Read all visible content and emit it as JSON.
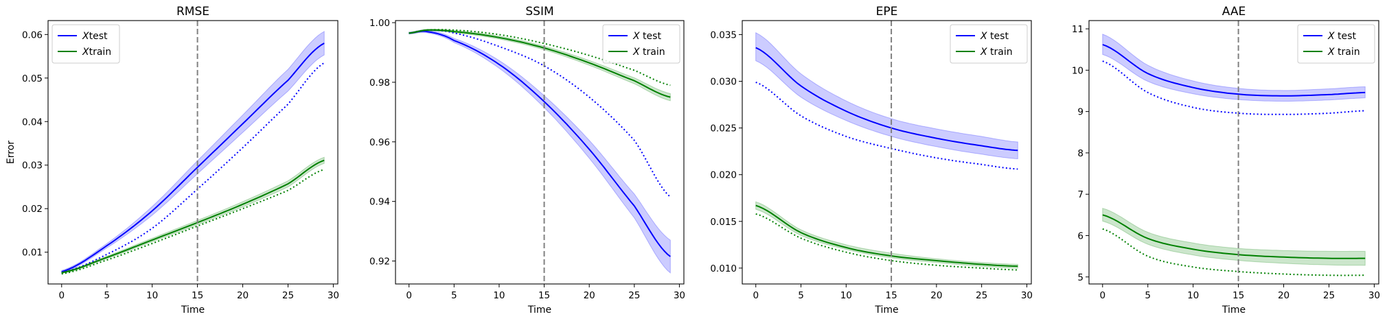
{
  "chart_data": [
    {
      "type": "line",
      "title": "RMSE",
      "xlabel": "Time",
      "ylabel": "Error",
      "xlim": [
        -1.5,
        30.5
      ],
      "ylim": [
        0.0027,
        0.0632
      ],
      "xticks": [
        0,
        5,
        10,
        15,
        20,
        25,
        30
      ],
      "yticks": [
        0.01,
        0.02,
        0.03,
        0.04,
        0.05,
        0.06
      ],
      "ytick_labels": [
        "0.01",
        "0.02",
        "0.03",
        "0.04",
        "0.05",
        "0.06"
      ],
      "vline_x": 15,
      "legend_placement": "top-left",
      "series": [
        {
          "name": "Xtest",
          "name_prefix": "X",
          "name_rest": "test",
          "color": "#0000ff",
          "x": [
            0,
            5,
            10,
            15,
            20,
            25,
            29
          ],
          "mean": [
            0.0055,
            0.0115,
            0.0195,
            0.0295,
            0.0395,
            0.0495,
            0.058
          ],
          "lower": [
            0.0052,
            0.011,
            0.0185,
            0.028,
            0.0375,
            0.047,
            0.0553
          ],
          "upper": [
            0.0058,
            0.012,
            0.0205,
            0.031,
            0.0415,
            0.052,
            0.0607
          ],
          "dotted": [
            0.0053,
            0.0095,
            0.0155,
            0.0245,
            0.034,
            0.044,
            0.0535
          ]
        },
        {
          "name": "Xtrain",
          "name_prefix": "X",
          "name_rest": "train",
          "color": "#008000",
          "x": [
            0,
            5,
            10,
            15,
            20,
            25,
            29
          ],
          "mean": [
            0.0053,
            0.0088,
            0.0128,
            0.0168,
            0.021,
            0.0257,
            0.0311
          ],
          "lower": [
            0.0051,
            0.0085,
            0.0124,
            0.0163,
            0.0204,
            0.025,
            0.0304
          ],
          "upper": [
            0.0055,
            0.0091,
            0.0132,
            0.0173,
            0.0216,
            0.0264,
            0.0318
          ],
          "dotted": [
            0.005,
            0.0082,
            0.012,
            0.016,
            0.02,
            0.0242,
            0.029
          ]
        }
      ]
    },
    {
      "type": "line",
      "title": "SSIM",
      "xlabel": "Time",
      "ylabel": "",
      "xlim": [
        -1.5,
        30.5
      ],
      "ylim": [
        0.9123,
        1.0007
      ],
      "xticks": [
        0,
        5,
        10,
        15,
        20,
        25,
        30
      ],
      "yticks": [
        0.92,
        0.94,
        0.96,
        0.98,
        1.0
      ],
      "ytick_labels": [
        "0.92",
        "0.94",
        "0.96",
        "0.98",
        "1.00"
      ],
      "vline_x": 15,
      "legend_placement": "top-right",
      "series": [
        {
          "name": "X test",
          "name_prefix": "X",
          "name_rest": " test",
          "color": "#0000ff",
          "x": [
            0,
            2,
            5,
            10,
            15,
            20,
            25,
            29
          ],
          "mean": [
            0.9965,
            0.997,
            0.994,
            0.986,
            0.9735,
            0.9575,
            0.9385,
            0.9215
          ],
          "lower": [
            0.9962,
            0.9966,
            0.9933,
            0.9847,
            0.9715,
            0.9545,
            0.9345,
            0.916
          ],
          "upper": [
            0.9968,
            0.9974,
            0.9947,
            0.9873,
            0.9755,
            0.9605,
            0.9425,
            0.927
          ],
          "dotted": [
            0.9965,
            0.9975,
            0.9965,
            0.992,
            0.9855,
            0.975,
            0.9605,
            0.9415
          ]
        },
        {
          "name": "X train",
          "name_prefix": "X",
          "name_rest": " train",
          "color": "#008000",
          "x": [
            0,
            2,
            5,
            10,
            15,
            20,
            25,
            29
          ],
          "mean": [
            0.9965,
            0.9975,
            0.997,
            0.995,
            0.9915,
            0.9865,
            0.9805,
            0.975
          ],
          "lower": [
            0.9962,
            0.9972,
            0.9966,
            0.9945,
            0.9909,
            0.9857,
            0.9795,
            0.9738
          ],
          "upper": [
            0.9968,
            0.9978,
            0.9974,
            0.9955,
            0.9921,
            0.9873,
            0.9815,
            0.9762
          ],
          "dotted": [
            0.9965,
            0.9975,
            0.9975,
            0.996,
            0.993,
            0.989,
            0.984,
            0.979
          ]
        }
      ]
    },
    {
      "type": "line",
      "title": "EPE",
      "xlabel": "Time",
      "ylabel": "",
      "xlim": [
        -1.5,
        30.5
      ],
      "ylim": [
        0.0083,
        0.0365
      ],
      "xticks": [
        0,
        5,
        10,
        15,
        20,
        25,
        30
      ],
      "yticks": [
        0.01,
        0.015,
        0.02,
        0.025,
        0.03,
        0.035
      ],
      "ytick_labels": [
        "0.010",
        "0.015",
        "0.020",
        "0.025",
        "0.030",
        "0.035"
      ],
      "vline_x": 15,
      "legend_placement": "top-right",
      "series": [
        {
          "name": "X test",
          "name_prefix": "X",
          "name_rest": " test",
          "color": "#0000ff",
          "x": [
            0,
            5,
            10,
            15,
            20,
            25,
            29
          ],
          "mean": [
            0.0336,
            0.0295,
            0.0268,
            0.025,
            0.0239,
            0.0231,
            0.0226
          ],
          "lower": [
            0.0322,
            0.0283,
            0.0258,
            0.0241,
            0.023,
            0.0222,
            0.0217
          ],
          "upper": [
            0.0352,
            0.0308,
            0.0279,
            0.026,
            0.0249,
            0.0241,
            0.0235
          ],
          "dotted": [
            0.0299,
            0.0263,
            0.0241,
            0.0228,
            0.0218,
            0.0211,
            0.0206
          ]
        },
        {
          "name": "X train",
          "name_prefix": "X",
          "name_rest": " train",
          "color": "#008000",
          "x": [
            0,
            5,
            10,
            15,
            20,
            25,
            29
          ],
          "mean": [
            0.0167,
            0.0138,
            0.0122,
            0.0113,
            0.0108,
            0.0104,
            0.0102
          ],
          "lower": [
            0.0163,
            0.0135,
            0.012,
            0.0111,
            0.0106,
            0.0102,
            0.01
          ],
          "upper": [
            0.0171,
            0.0141,
            0.0125,
            0.0116,
            0.011,
            0.0106,
            0.0104
          ],
          "dotted": [
            0.0158,
            0.0132,
            0.0117,
            0.0108,
            0.0103,
            0.01,
            0.0098
          ]
        }
      ]
    },
    {
      "type": "line",
      "title": "AAE",
      "xlabel": "Time",
      "ylabel": "",
      "xlim": [
        -1.5,
        30.5
      ],
      "ylim": [
        4.83,
        11.2
      ],
      "xticks": [
        0,
        5,
        10,
        15,
        20,
        25,
        30
      ],
      "yticks": [
        5,
        6,
        7,
        8,
        9,
        10,
        11
      ],
      "ytick_labels": [
        "5",
        "6",
        "7",
        "8",
        "9",
        "10",
        "11"
      ],
      "vline_x": 15,
      "legend_placement": "top-right",
      "series": [
        {
          "name": "X test",
          "name_prefix": "X",
          "name_rest": " test",
          "color": "#0000ff",
          "x": [
            0,
            5,
            10,
            15,
            20,
            25,
            29
          ],
          "mean": [
            10.62,
            9.92,
            9.58,
            9.42,
            9.38,
            9.41,
            9.46
          ],
          "lower": [
            10.38,
            9.73,
            9.43,
            9.29,
            9.25,
            9.28,
            9.33
          ],
          "upper": [
            10.87,
            10.12,
            9.74,
            9.56,
            9.51,
            9.55,
            9.6
          ],
          "dotted": [
            10.22,
            9.46,
            9.1,
            8.96,
            8.93,
            8.96,
            9.02
          ]
        },
        {
          "name": "X train",
          "name_prefix": "X",
          "name_rest": " train",
          "color": "#008000",
          "x": [
            0,
            5,
            10,
            15,
            20,
            25,
            29
          ],
          "mean": [
            6.5,
            5.93,
            5.67,
            5.54,
            5.48,
            5.45,
            5.45
          ],
          "lower": [
            6.35,
            5.79,
            5.53,
            5.4,
            5.33,
            5.29,
            5.28
          ],
          "upper": [
            6.66,
            6.08,
            5.82,
            5.69,
            5.64,
            5.62,
            5.62
          ],
          "dotted": [
            6.16,
            5.5,
            5.24,
            5.13,
            5.07,
            5.04,
            5.04
          ]
        }
      ]
    }
  ]
}
